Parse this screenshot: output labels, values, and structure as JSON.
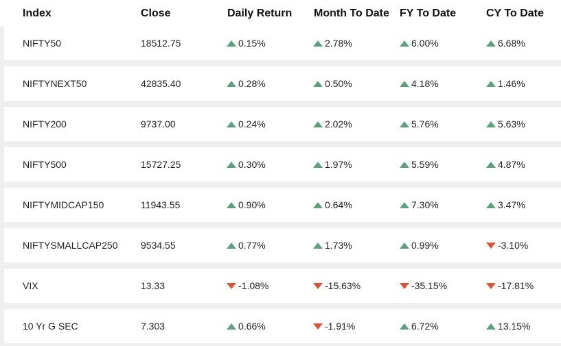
{
  "columns": [
    "Index",
    "Close",
    "Daily Return",
    "Month To Date",
    "FY To Date",
    "CY To Date"
  ],
  "colors": {
    "up": "#5f9f80",
    "down": "#d4573a",
    "row_bg": "#ffffff",
    "page_bg": "#efefef"
  },
  "icons": {
    "up": "triangle-up-icon",
    "down": "triangle-down-icon"
  },
  "rows": [
    {
      "index": "NIFTY50",
      "close": "18512.75",
      "daily": "0.15%",
      "daily_dir": "up",
      "mtd": "2.78%",
      "mtd_dir": "up",
      "fytd": "6.00%",
      "fytd_dir": "up",
      "cytd": "6.68%",
      "cytd_dir": "up"
    },
    {
      "index": "NIFTYNEXT50",
      "close": "42835.40",
      "daily": "0.28%",
      "daily_dir": "up",
      "mtd": "0.50%",
      "mtd_dir": "up",
      "fytd": "4.18%",
      "fytd_dir": "up",
      "cytd": "1.46%",
      "cytd_dir": "up"
    },
    {
      "index": "NIFTY200",
      "close": "9737.00",
      "daily": "0.24%",
      "daily_dir": "up",
      "mtd": "2.02%",
      "mtd_dir": "up",
      "fytd": "5.76%",
      "fytd_dir": "up",
      "cytd": "5.63%",
      "cytd_dir": "up"
    },
    {
      "index": "NIFTY500",
      "close": "15727.25",
      "daily": "0.30%",
      "daily_dir": "up",
      "mtd": "1.97%",
      "mtd_dir": "up",
      "fytd": "5.59%",
      "fytd_dir": "up",
      "cytd": "4.87%",
      "cytd_dir": "up"
    },
    {
      "index": "NIFTYMIDCAP150",
      "close": "11943.55",
      "daily": "0.90%",
      "daily_dir": "up",
      "mtd": "0.64%",
      "mtd_dir": "up",
      "fytd": "7.30%",
      "fytd_dir": "up",
      "cytd": "3.47%",
      "cytd_dir": "up"
    },
    {
      "index": "NIFTYSMALLCAP250",
      "close": "9534.55",
      "daily": "0.77%",
      "daily_dir": "up",
      "mtd": "1.73%",
      "mtd_dir": "up",
      "fytd": "0.99%",
      "fytd_dir": "up",
      "cytd": "-3.10%",
      "cytd_dir": "down"
    },
    {
      "index": "VIX",
      "close": "13.33",
      "daily": "-1.08%",
      "daily_dir": "down",
      "mtd": "-15.63%",
      "mtd_dir": "down",
      "fytd": "-35.15%",
      "fytd_dir": "down",
      "cytd": "-17.81%",
      "cytd_dir": "down"
    },
    {
      "index": "10 Yr G SEC",
      "close": "7.303",
      "daily": "0.66%",
      "daily_dir": "up",
      "mtd": "-1.91%",
      "mtd_dir": "down",
      "fytd": "6.72%",
      "fytd_dir": "up",
      "cytd": "13.15%",
      "cytd_dir": "up"
    }
  ]
}
